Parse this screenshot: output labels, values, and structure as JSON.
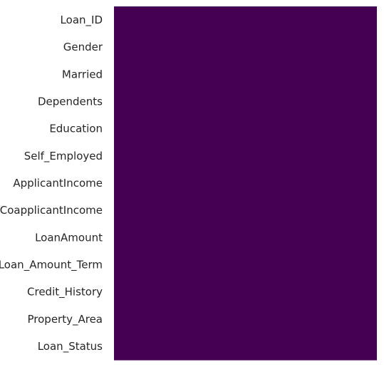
{
  "chart_data": {
    "type": "heatmap",
    "title": "",
    "xlabel": "",
    "ylabel": "",
    "rows": [
      "Loan_ID",
      "Gender",
      "Married",
      "Dependents",
      "Education",
      "Self_Employed",
      "ApplicantIncome",
      "CoapplicantIncome",
      "LoanAmount",
      "Loan_Amount_Term",
      "Credit_History",
      "Property_Area",
      "Loan_Status"
    ],
    "values": [
      [
        0
      ],
      [
        0
      ],
      [
        0
      ],
      [
        0
      ],
      [
        0
      ],
      [
        0
      ],
      [
        0
      ],
      [
        0
      ],
      [
        0
      ],
      [
        0
      ],
      [
        0
      ],
      [
        0
      ],
      [
        0
      ]
    ],
    "colormap": "viridis",
    "cell_color": "#440154",
    "colorbar": false,
    "x_tick_labels_shown": false,
    "grid": false
  }
}
